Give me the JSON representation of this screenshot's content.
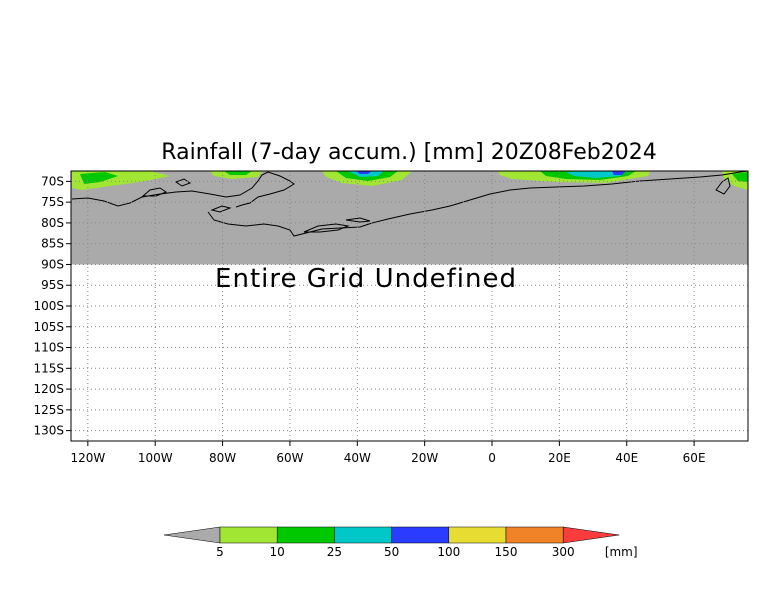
{
  "chart_data": {
    "type": "heatmap",
    "title": "Rainfall (7-day accum.) [mm] 20Z08Feb2024",
    "notice": "Entire Grid Undefined",
    "x_ticks": [
      {
        "value": -120,
        "label": "120W"
      },
      {
        "value": -100,
        "label": "100W"
      },
      {
        "value": -80,
        "label": "80W"
      },
      {
        "value": -60,
        "label": "60W"
      },
      {
        "value": -40,
        "label": "40W"
      },
      {
        "value": -20,
        "label": "20W"
      },
      {
        "value": 0,
        "label": "0"
      },
      {
        "value": 20,
        "label": "20E"
      },
      {
        "value": 40,
        "label": "40E"
      },
      {
        "value": 60,
        "label": "60E"
      }
    ],
    "y_ticks": [
      {
        "value": -70,
        "label": "70S"
      },
      {
        "value": -75,
        "label": "75S"
      },
      {
        "value": -80,
        "label": "80S"
      },
      {
        "value": -85,
        "label": "85S"
      },
      {
        "value": -90,
        "label": "90S"
      },
      {
        "value": -95,
        "label": "95S"
      },
      {
        "value": -100,
        "label": "100S"
      },
      {
        "value": -105,
        "label": "105S"
      },
      {
        "value": -110,
        "label": "110S"
      },
      {
        "value": -115,
        "label": "115S"
      },
      {
        "value": -120,
        "label": "120S"
      },
      {
        "value": -125,
        "label": "125S"
      },
      {
        "value": -130,
        "label": "130S"
      }
    ],
    "xlim": [
      -125,
      76
    ],
    "ylim": [
      -132.5,
      -67.5
    ],
    "undefined_below_lat": -90,
    "grid": true,
    "colorbar": {
      "unit": "[mm]",
      "levels": [
        "5",
        "10",
        "25",
        "50",
        "100",
        "150",
        "300"
      ],
      "colors": [
        "#aaaaaa",
        "#a0e632",
        "#00c800",
        "#00c8c8",
        "#2a3cff",
        "#e6dc32",
        "#f08228",
        "#fa3c3c"
      ]
    },
    "colors": {
      "land": "#aaaaaa",
      "coast": "#000000",
      "grid": "#888888"
    }
  }
}
